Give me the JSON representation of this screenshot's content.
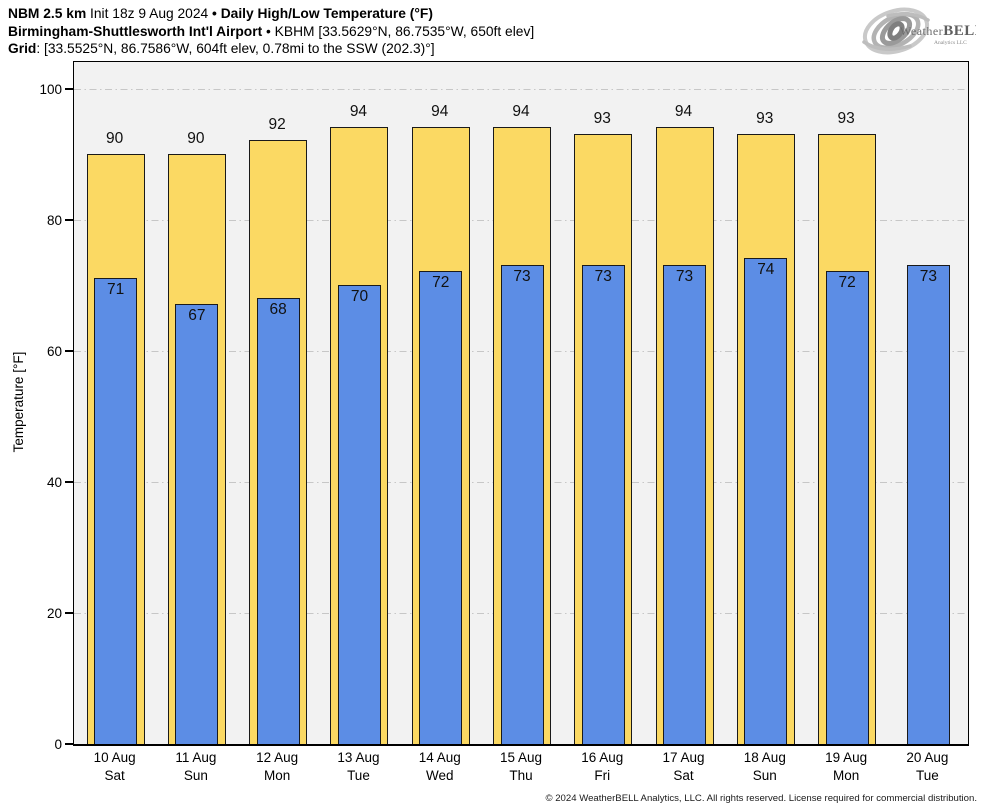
{
  "header": {
    "line1": {
      "model": "NBM 2.5 km",
      "init": " Init 18z 9 Aug 2024 ",
      "bullet": "• ",
      "product": "Daily High/Low Temperature (°F)"
    },
    "line2": {
      "station": "Birmingham-Shuttlesworth Int'l Airport",
      "bullet": " • ",
      "details": "KBHM [33.5629°N, 86.7535°W, 650ft elev]"
    },
    "line3": {
      "label": "Grid",
      "details": ": [33.5525°N, 86.7586°W, 604ft elev, 0.78mi to the SSW (202.3)°]"
    }
  },
  "logo": {
    "brand_weather": "Weather",
    "brand_bell": "BELL",
    "sub": "Analytics LLC"
  },
  "chart_data": {
    "type": "bar",
    "title": "Daily High/Low Temperature (°F)",
    "ylabel": "Temperature [°F]",
    "ylim": [
      0,
      104
    ],
    "yticks": [
      0,
      20,
      40,
      60,
      80,
      100
    ],
    "grid": "horizontal dash-dot gridlines at yticks, light gray",
    "legend_position": "none",
    "plot_bg": "#f2f2f2",
    "categories": [
      "10 Aug Sat",
      "11 Aug Sun",
      "12 Aug Mon",
      "13 Aug Tue",
      "14 Aug Wed",
      "15 Aug Thu",
      "16 Aug Fri",
      "17 Aug Sat",
      "18 Aug Sun",
      "19 Aug Mon",
      "20 Aug Tue"
    ],
    "xlabels": [
      {
        "date": "10 Aug",
        "dow": "Sat"
      },
      {
        "date": "11 Aug",
        "dow": "Sun"
      },
      {
        "date": "12 Aug",
        "dow": "Mon"
      },
      {
        "date": "13 Aug",
        "dow": "Tue"
      },
      {
        "date": "14 Aug",
        "dow": "Wed"
      },
      {
        "date": "15 Aug",
        "dow": "Thu"
      },
      {
        "date": "16 Aug",
        "dow": "Fri"
      },
      {
        "date": "17 Aug",
        "dow": "Sat"
      },
      {
        "date": "18 Aug",
        "dow": "Sun"
      },
      {
        "date": "19 Aug",
        "dow": "Mon"
      },
      {
        "date": "20 Aug",
        "dow": "Tue"
      }
    ],
    "series": [
      {
        "name": "High",
        "color": "#fbd963",
        "values": [
          90,
          90,
          92,
          94,
          94,
          94,
          93,
          94,
          93,
          93,
          null
        ]
      },
      {
        "name": "Low",
        "color": "#5c8de5",
        "values": [
          71,
          67,
          68,
          70,
          72,
          73,
          73,
          73,
          74,
          72,
          73
        ]
      }
    ]
  },
  "footer": {
    "copyright": "© 2024 WeatherBELL Analytics, LLC. All rights reserved. License required for commercial distribution."
  }
}
